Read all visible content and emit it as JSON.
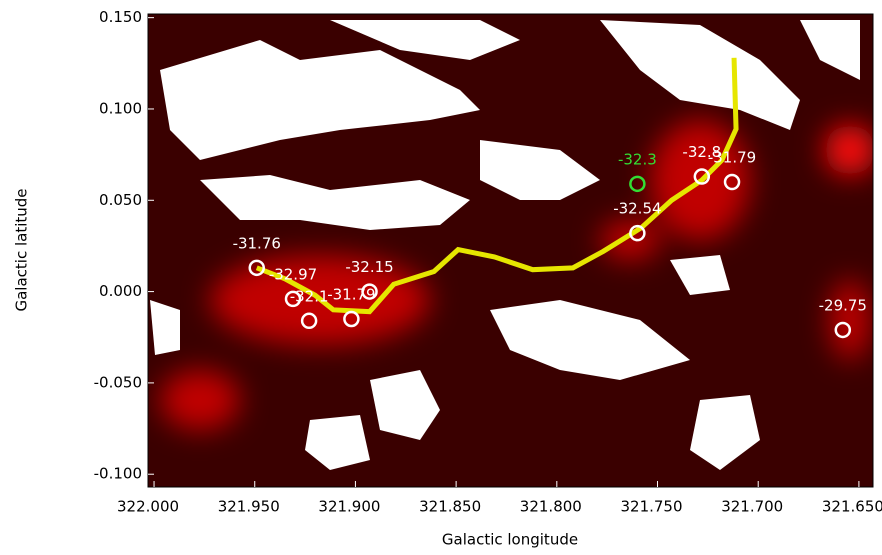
{
  "chart_data": {
    "type": "scatter",
    "x_label": "Galactic longitude",
    "y_label": "Galactic latitude",
    "xlim": [
      322.003,
      321.643
    ],
    "ylim": [
      -0.107,
      0.152
    ],
    "xticks": [
      {
        "value": 322.0,
        "label": "322.000"
      },
      {
        "value": 321.95,
        "label": "321.950"
      },
      {
        "value": 321.9,
        "label": "321.900"
      },
      {
        "value": 321.85,
        "label": "321.850"
      },
      {
        "value": 321.8,
        "label": "321.800"
      },
      {
        "value": 321.75,
        "label": "321.750"
      },
      {
        "value": 321.7,
        "label": "321.700"
      },
      {
        "value": 321.65,
        "label": "321.650"
      }
    ],
    "yticks": [
      {
        "value": 0.15,
        "label": "0.150"
      },
      {
        "value": 0.1,
        "label": "0.100"
      },
      {
        "value": 0.05,
        "label": "0.050"
      },
      {
        "value": 0,
        "label": "0.000"
      },
      {
        "value": -0.05,
        "label": "-0.050"
      },
      {
        "value": -0.1,
        "label": "-0.100"
      }
    ],
    "path": {
      "color": "#e6e600",
      "x": [
        321.949,
        321.935,
        321.92,
        321.911,
        321.893,
        321.881,
        321.861,
        321.849,
        321.831,
        321.812,
        321.792,
        321.777,
        321.758,
        321.743,
        321.728,
        321.718,
        321.711,
        321.712
      ],
      "y": [
        0.013,
        0.007,
        -0.002,
        -0.01,
        -0.011,
        0.004,
        0.011,
        0.023,
        0.019,
        0.012,
        0.013,
        0.022,
        0.035,
        0.05,
        0.061,
        0.072,
        0.089,
        0.128
      ]
    },
    "series": [
      {
        "color": "#ffffff",
        "x": [
          321.949,
          321.931,
          321.923,
          321.902,
          321.893,
          321.76,
          321.728,
          321.713,
          321.658
        ],
        "y": [
          0.013,
          -0.004,
          -0.016,
          -0.015,
          0.0,
          0.032,
          0.063,
          0.06,
          -0.021
        ],
        "labels": [
          "-31.76",
          "-32.97",
          "-32.1",
          "-31.79",
          "-32.15",
          "-32.54",
          "-32.8",
          "-31.79",
          "-29.75"
        ]
      },
      {
        "color": "#33dd33",
        "x": [
          321.76
        ],
        "y": [
          0.059
        ],
        "labels": [
          "-32.3"
        ]
      }
    ]
  }
}
